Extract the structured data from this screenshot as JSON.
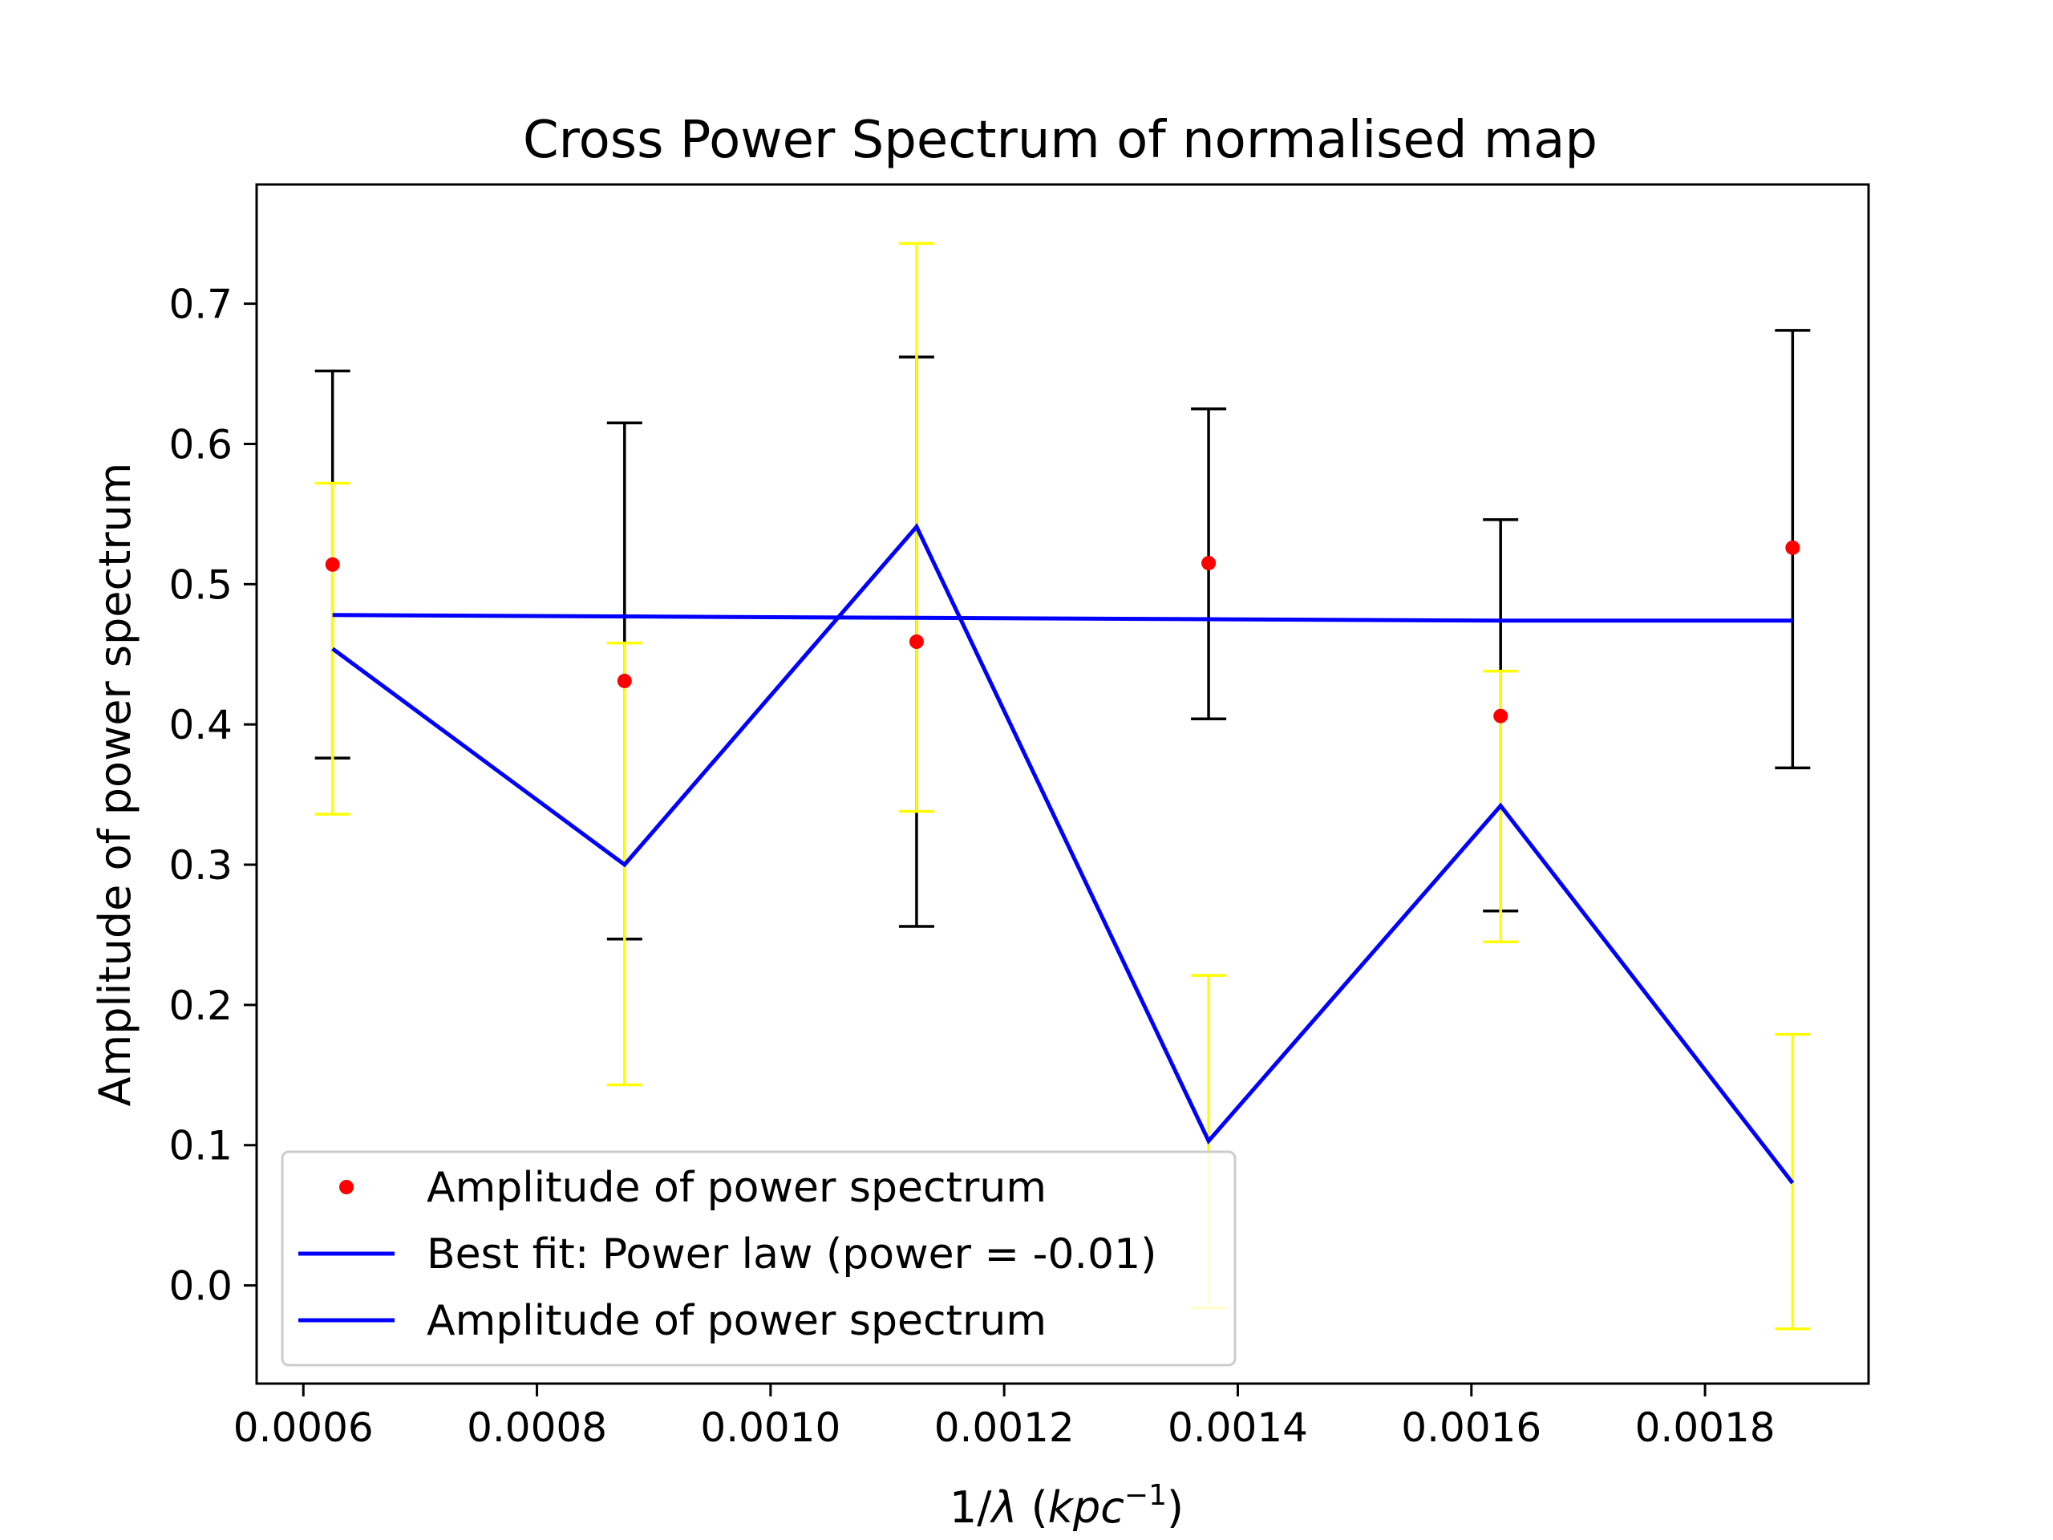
{
  "chart_data": {
    "type": "scatter",
    "title": "Cross Power Spectrum of normalised map",
    "xlabel_prefix": "1/",
    "xlabel_lambda": "λ",
    "xlabel_unit_open": " (",
    "xlabel_unit": "kpc",
    "xlabel_sup": "−1",
    "xlabel_close": ")",
    "ylabel": "Amplitude of power spectrum",
    "xlim": [
      0.00056,
      0.00194
    ],
    "ylim": [
      -0.07,
      0.785
    ],
    "xticks": [
      {
        "value": 0.0006,
        "label": "0.0006"
      },
      {
        "value": 0.0008,
        "label": "0.0008"
      },
      {
        "value": 0.001,
        "label": "0.0010"
      },
      {
        "value": 0.0012,
        "label": "0.0012"
      },
      {
        "value": 0.0014,
        "label": "0.0014"
      },
      {
        "value": 0.0016,
        "label": "0.0016"
      },
      {
        "value": 0.0018,
        "label": "0.0018"
      }
    ],
    "yticks": [
      {
        "value": 0.0,
        "label": "0.0"
      },
      {
        "value": 0.1,
        "label": "0.1"
      },
      {
        "value": 0.2,
        "label": "0.2"
      },
      {
        "value": 0.3,
        "label": "0.3"
      },
      {
        "value": 0.4,
        "label": "0.4"
      },
      {
        "value": 0.5,
        "label": "0.5"
      },
      {
        "value": 0.6,
        "label": "0.6"
      },
      {
        "value": 0.7,
        "label": "0.7"
      }
    ],
    "x": [
      0.000625,
      0.000875,
      0.001125,
      0.001375,
      0.001625,
      0.001875
    ],
    "series": [
      {
        "name": "Amplitude of power spectrum",
        "kind": "points",
        "color": "#ff0000",
        "values": [
          0.514,
          0.431,
          0.459,
          0.515,
          0.406,
          0.526
        ],
        "errorbars": {
          "color": "#000000",
          "low": [
            0.376,
            0.247,
            0.256,
            0.404,
            0.267,
            0.369
          ],
          "high": [
            0.652,
            0.615,
            0.662,
            0.625,
            0.546,
            0.681
          ]
        }
      },
      {
        "name": "Best fit: Power law (power = -0.01)",
        "kind": "line",
        "color": "#0000ff",
        "values": [
          0.478,
          0.477,
          0.476,
          0.475,
          0.474,
          0.474
        ]
      },
      {
        "name": "Amplitude of power spectrum",
        "kind": "line",
        "color": "#0000ff",
        "values": [
          0.454,
          0.3,
          0.541,
          0.103,
          0.342,
          0.073
        ],
        "errorbars": {
          "color": "#ffff00",
          "low": [
            0.336,
            0.143,
            0.338,
            -0.016,
            0.245,
            -0.031
          ],
          "high": [
            0.572,
            0.458,
            0.743,
            0.221,
            0.438,
            0.179
          ]
        }
      }
    ],
    "legend_position": "lower-left",
    "grid": false
  }
}
